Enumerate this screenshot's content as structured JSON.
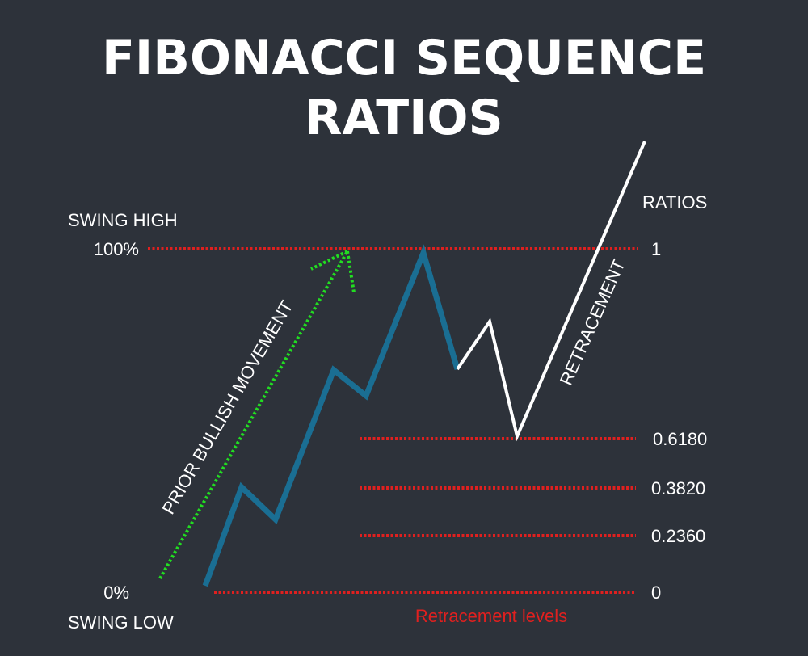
{
  "title": {
    "line1": "FIBONACCI SEQUENCE",
    "line2": "RATIOS"
  },
  "labels": {
    "swing_high": "SWING HIGH",
    "swing_low": "SWING LOW",
    "high_pct": "100%",
    "low_pct": "0%",
    "ratios_header": "RATIOS",
    "prior_movement": "PRIOR BULLISH MOVEMENT",
    "retracement": "RETRACEMENT",
    "retracement_levels": "Retracement levels"
  },
  "levels": [
    {
      "ratio": "1"
    },
    {
      "ratio": "0.6180"
    },
    {
      "ratio": "0.3820"
    },
    {
      "ratio": "0.2360"
    },
    {
      "ratio": "0"
    }
  ],
  "colors": {
    "background": "#2d323a",
    "prior_trend": "#1a6e93",
    "retracement_path": "#ffffff",
    "levels": "#e0201f",
    "arrow": "#22dd22"
  }
}
